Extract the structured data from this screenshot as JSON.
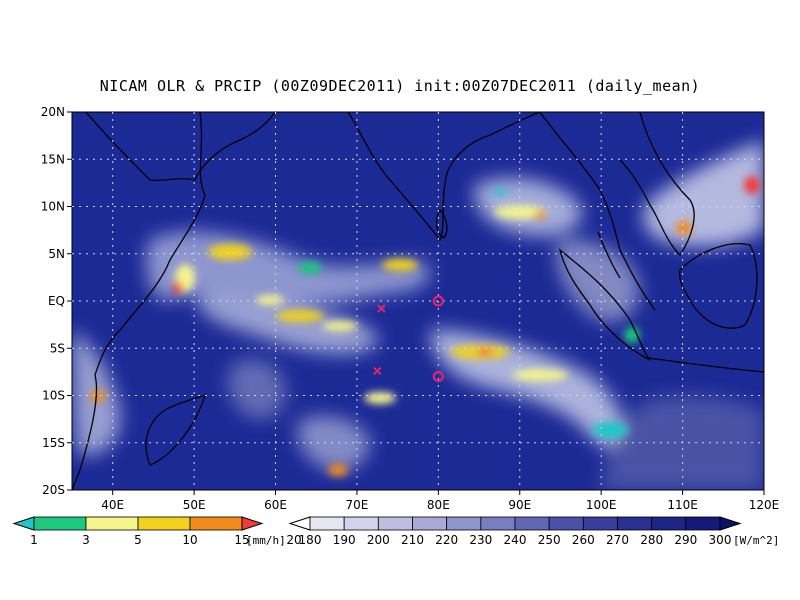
{
  "title": "NICAM OLR & PRCIP (00Z09DEC2011) init:00Z07DEC2011 (daily_mean)",
  "map": {
    "lat_range": [
      -20,
      20
    ],
    "lon_range": [
      35,
      120
    ],
    "lat_ticks": [
      "20N",
      "15N",
      "10N",
      "5N",
      "EQ",
      "5S",
      "10S",
      "15S",
      "20S"
    ],
    "lon_ticks": [
      "40E",
      "50E",
      "60E",
      "70E",
      "80E",
      "90E",
      "100E",
      "110E",
      "120E"
    ],
    "grid": "dotted",
    "ocean_color": "#1c2a96",
    "cloud_color": "#e8e8f4",
    "coast_color": "#000000"
  },
  "markers": [
    {
      "type": "cross",
      "lon": 73,
      "lat": -0.8,
      "color": "#e0246e"
    },
    {
      "type": "circle",
      "lon": 80,
      "lat": 0,
      "color": "#e0246e"
    },
    {
      "type": "cross",
      "lon": 72.5,
      "lat": -7.4,
      "color": "#e0246e"
    },
    {
      "type": "circle",
      "lon": 80,
      "lat": -8,
      "color": "#e0246e"
    }
  ],
  "precip_legend": {
    "labels": [
      "1",
      "3",
      "5",
      "10",
      "15",
      "20"
    ],
    "colors": [
      "#1ec8c8",
      "#1ec87e",
      "#f5f58c",
      "#f0d21e",
      "#f08c1e",
      "#f03c3c"
    ],
    "unit": "[mm/h]"
  },
  "olr_legend": {
    "labels": [
      "180",
      "190",
      "200",
      "210",
      "220",
      "230",
      "240",
      "250",
      "260",
      "270",
      "280",
      "290",
      "300"
    ],
    "colors": [
      "#ffffff",
      "#e6e6f2",
      "#d2d2ea",
      "#bebee2",
      "#a8aad8",
      "#9094cc",
      "#787ec0",
      "#6068b4",
      "#4a52a8",
      "#383e9c",
      "#283090",
      "#1c2484",
      "#141a78",
      "#0c1068"
    ],
    "unit": "[W/m^2]"
  }
}
